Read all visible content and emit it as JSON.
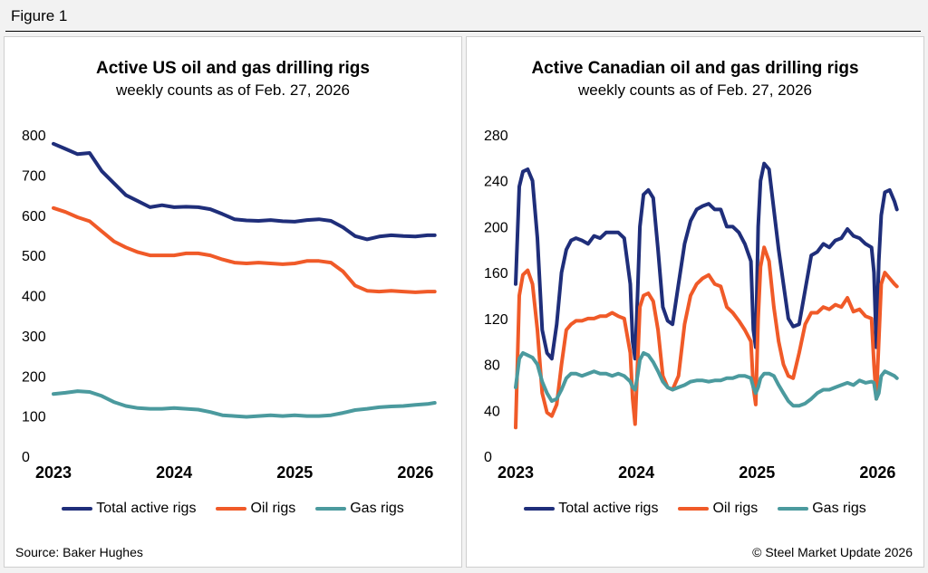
{
  "figure_label": "Figure 1",
  "source": "Source: Baker Hughes",
  "copyright": "© Steel Market Update 2026",
  "colors": {
    "total": "#1f2e7a",
    "oil": "#f05a28",
    "gas": "#4b9a9e"
  },
  "chart_data": [
    {
      "type": "line",
      "title": "Active US oil and gas drilling rigs",
      "subtitle": "weekly counts as of Feb. 27, 2026",
      "xlabel": "",
      "ylabel": "",
      "xlim": [
        2023.0,
        2026.17
      ],
      "ylim": [
        0,
        800
      ],
      "yticks": [
        0,
        100,
        200,
        300,
        400,
        500,
        600,
        700,
        800
      ],
      "xticks": [
        {
          "value": 2023.0,
          "label": "2023"
        },
        {
          "value": 2024.0,
          "label": "2024"
        },
        {
          "value": 2025.0,
          "label": "2025"
        },
        {
          "value": 2026.0,
          "label": "2026"
        }
      ],
      "series": [
        {
          "name": "Total active rigs",
          "key": "total",
          "x": [
            2023.0,
            2023.1,
            2023.2,
            2023.3,
            2023.4,
            2023.5,
            2023.6,
            2023.7,
            2023.8,
            2023.9,
            2024.0,
            2024.1,
            2024.2,
            2024.3,
            2024.4,
            2024.5,
            2024.6,
            2024.7,
            2024.8,
            2024.9,
            2025.0,
            2025.1,
            2025.2,
            2025.3,
            2025.4,
            2025.5,
            2025.6,
            2025.7,
            2025.8,
            2025.9,
            2026.0,
            2026.1,
            2026.16
          ],
          "values": [
            778,
            765,
            752,
            755,
            710,
            680,
            650,
            635,
            620,
            625,
            620,
            621,
            620,
            615,
            603,
            590,
            587,
            586,
            588,
            585,
            584,
            588,
            590,
            586,
            570,
            548,
            540,
            547,
            550,
            548,
            547,
            550,
            550
          ]
        },
        {
          "name": "Oil rigs",
          "key": "oil",
          "x": [
            2023.0,
            2023.1,
            2023.2,
            2023.3,
            2023.4,
            2023.5,
            2023.6,
            2023.7,
            2023.8,
            2023.9,
            2024.0,
            2024.1,
            2024.2,
            2024.3,
            2024.4,
            2024.5,
            2024.6,
            2024.7,
            2024.8,
            2024.9,
            2025.0,
            2025.1,
            2025.2,
            2025.3,
            2025.4,
            2025.5,
            2025.6,
            2025.7,
            2025.8,
            2025.9,
            2026.0,
            2026.1,
            2026.16
          ],
          "values": [
            618,
            608,
            595,
            585,
            560,
            535,
            520,
            508,
            500,
            500,
            500,
            505,
            505,
            500,
            490,
            482,
            480,
            482,
            480,
            478,
            480,
            486,
            486,
            482,
            460,
            425,
            412,
            410,
            412,
            410,
            408,
            410,
            410
          ]
        },
        {
          "name": "Gas rigs",
          "key": "gas",
          "x": [
            2023.0,
            2023.1,
            2023.2,
            2023.3,
            2023.4,
            2023.5,
            2023.6,
            2023.7,
            2023.8,
            2023.9,
            2024.0,
            2024.1,
            2024.2,
            2024.3,
            2024.4,
            2024.5,
            2024.6,
            2024.7,
            2024.8,
            2024.9,
            2025.0,
            2025.1,
            2025.2,
            2025.3,
            2025.4,
            2025.5,
            2025.6,
            2025.7,
            2025.8,
            2025.9,
            2026.0,
            2026.1,
            2026.16
          ],
          "values": [
            155,
            158,
            162,
            160,
            150,
            135,
            125,
            120,
            118,
            118,
            120,
            118,
            116,
            110,
            102,
            100,
            98,
            100,
            102,
            100,
            102,
            100,
            100,
            102,
            108,
            115,
            118,
            122,
            124,
            125,
            128,
            130,
            133
          ]
        }
      ]
    },
    {
      "type": "line",
      "title": "Active Canadian oil and gas drilling rigs",
      "subtitle": "weekly counts as of Feb. 27, 2026",
      "xlabel": "",
      "ylabel": "",
      "xlim": [
        2023.0,
        2026.17
      ],
      "ylim": [
        0,
        280
      ],
      "yticks": [
        0,
        40,
        80,
        120,
        160,
        200,
        240,
        280
      ],
      "xticks": [
        {
          "value": 2023.0,
          "label": "2023"
        },
        {
          "value": 2024.0,
          "label": "2024"
        },
        {
          "value": 2025.0,
          "label": "2025"
        },
        {
          "value": 2026.0,
          "label": "2026"
        }
      ],
      "series": [
        {
          "name": "Total active rigs",
          "key": "total",
          "x": [
            2023.0,
            2023.03,
            2023.06,
            2023.1,
            2023.14,
            2023.18,
            2023.22,
            2023.26,
            2023.3,
            2023.34,
            2023.38,
            2023.42,
            2023.46,
            2023.5,
            2023.55,
            2023.6,
            2023.65,
            2023.7,
            2023.75,
            2023.8,
            2023.85,
            2023.9,
            2023.95,
            2023.97,
            2023.99,
            2024.01,
            2024.03,
            2024.06,
            2024.1,
            2024.14,
            2024.18,
            2024.22,
            2024.26,
            2024.3,
            2024.35,
            2024.4,
            2024.45,
            2024.5,
            2024.55,
            2024.6,
            2024.65,
            2024.7,
            2024.75,
            2024.8,
            2024.85,
            2024.9,
            2024.95,
            2024.97,
            2024.99,
            2025.01,
            2025.03,
            2025.06,
            2025.1,
            2025.14,
            2025.18,
            2025.22,
            2025.26,
            2025.3,
            2025.35,
            2025.4,
            2025.45,
            2025.5,
            2025.55,
            2025.6,
            2025.65,
            2025.7,
            2025.75,
            2025.8,
            2025.85,
            2025.9,
            2025.95,
            2025.97,
            2025.99,
            2026.01,
            2026.03,
            2026.06,
            2026.1,
            2026.14,
            2026.16
          ],
          "values": [
            150,
            235,
            248,
            250,
            240,
            190,
            110,
            90,
            85,
            115,
            160,
            180,
            188,
            190,
            188,
            185,
            192,
            190,
            195,
            195,
            195,
            190,
            150,
            100,
            85,
            140,
            200,
            228,
            232,
            225,
            180,
            130,
            118,
            115,
            150,
            185,
            205,
            215,
            218,
            220,
            215,
            215,
            200,
            200,
            195,
            185,
            170,
            110,
            95,
            200,
            240,
            255,
            250,
            215,
            180,
            150,
            120,
            113,
            115,
            145,
            175,
            178,
            185,
            182,
            188,
            190,
            198,
            192,
            190,
            185,
            182,
            160,
            95,
            170,
            210,
            230,
            232,
            222,
            215
          ]
        },
        {
          "name": "Oil rigs",
          "key": "oil",
          "x": [
            2023.0,
            2023.03,
            2023.06,
            2023.1,
            2023.14,
            2023.18,
            2023.22,
            2023.26,
            2023.3,
            2023.34,
            2023.38,
            2023.42,
            2023.46,
            2023.5,
            2023.55,
            2023.6,
            2023.65,
            2023.7,
            2023.75,
            2023.8,
            2023.85,
            2023.9,
            2023.95,
            2023.97,
            2023.99,
            2024.01,
            2024.03,
            2024.06,
            2024.1,
            2024.14,
            2024.18,
            2024.22,
            2024.26,
            2024.3,
            2024.35,
            2024.4,
            2024.45,
            2024.5,
            2024.55,
            2024.6,
            2024.65,
            2024.7,
            2024.75,
            2024.8,
            2024.85,
            2024.9,
            2024.95,
            2024.97,
            2024.99,
            2025.01,
            2025.03,
            2025.06,
            2025.1,
            2025.14,
            2025.18,
            2025.22,
            2025.26,
            2025.3,
            2025.35,
            2025.4,
            2025.45,
            2025.5,
            2025.55,
            2025.6,
            2025.65,
            2025.7,
            2025.75,
            2025.8,
            2025.85,
            2025.9,
            2025.95,
            2025.97,
            2025.99,
            2026.01,
            2026.03,
            2026.06,
            2026.1,
            2026.14,
            2026.16
          ],
          "values": [
            25,
            140,
            158,
            162,
            150,
            110,
            55,
            38,
            35,
            45,
            80,
            110,
            115,
            118,
            118,
            120,
            120,
            122,
            122,
            125,
            122,
            120,
            90,
            50,
            28,
            80,
            130,
            140,
            142,
            135,
            110,
            70,
            60,
            58,
            70,
            115,
            140,
            150,
            155,
            158,
            150,
            148,
            130,
            125,
            118,
            110,
            100,
            60,
            45,
            120,
            165,
            182,
            170,
            130,
            100,
            80,
            70,
            68,
            90,
            115,
            125,
            125,
            130,
            128,
            132,
            130,
            138,
            126,
            128,
            122,
            120,
            80,
            50,
            100,
            150,
            160,
            155,
            150,
            148
          ]
        },
        {
          "name": "Gas rigs",
          "key": "gas",
          "x": [
            2023.0,
            2023.03,
            2023.06,
            2023.1,
            2023.14,
            2023.18,
            2023.22,
            2023.26,
            2023.3,
            2023.34,
            2023.38,
            2023.42,
            2023.46,
            2023.5,
            2023.55,
            2023.6,
            2023.65,
            2023.7,
            2023.75,
            2023.8,
            2023.85,
            2023.9,
            2023.95,
            2023.97,
            2023.99,
            2024.01,
            2024.03,
            2024.06,
            2024.1,
            2024.14,
            2024.18,
            2024.22,
            2024.26,
            2024.3,
            2024.35,
            2024.4,
            2024.45,
            2024.5,
            2024.55,
            2024.6,
            2024.65,
            2024.7,
            2024.75,
            2024.8,
            2024.85,
            2024.9,
            2024.95,
            2024.97,
            2024.99,
            2025.01,
            2025.03,
            2025.06,
            2025.1,
            2025.14,
            2025.18,
            2025.22,
            2025.26,
            2025.3,
            2025.35,
            2025.4,
            2025.45,
            2025.5,
            2025.55,
            2025.6,
            2025.65,
            2025.7,
            2025.75,
            2025.8,
            2025.85,
            2025.9,
            2025.95,
            2025.97,
            2025.99,
            2026.01,
            2026.03,
            2026.06,
            2026.1,
            2026.14,
            2026.16
          ],
          "values": [
            60,
            85,
            90,
            88,
            86,
            80,
            65,
            55,
            48,
            50,
            58,
            68,
            72,
            72,
            70,
            72,
            74,
            72,
            72,
            70,
            72,
            70,
            65,
            60,
            58,
            70,
            84,
            90,
            88,
            82,
            74,
            65,
            60,
            58,
            60,
            62,
            65,
            66,
            66,
            65,
            66,
            66,
            68,
            68,
            70,
            70,
            68,
            60,
            55,
            60,
            68,
            72,
            72,
            70,
            62,
            55,
            48,
            44,
            44,
            46,
            50,
            55,
            58,
            58,
            60,
            62,
            64,
            62,
            66,
            64,
            65,
            64,
            50,
            55,
            70,
            74,
            72,
            70,
            68
          ]
        }
      ]
    }
  ]
}
